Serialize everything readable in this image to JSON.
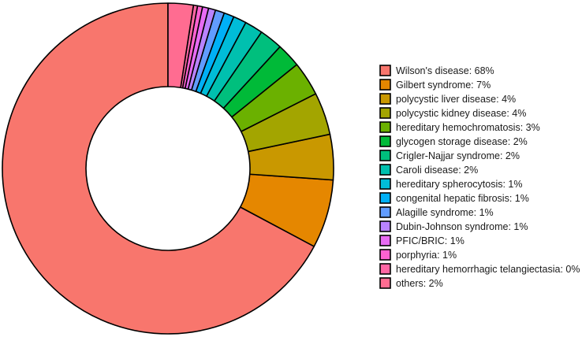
{
  "chart_data": {
    "type": "pie",
    "style": "donut",
    "legend_placement": "right",
    "title": "",
    "slices": [
      {
        "label": "Wilson's disease: 68%",
        "value": 68.2,
        "color": "#F8766D"
      },
      {
        "label": "Gilbert syndrome: 7%",
        "value": 6.8,
        "color": "#E58700"
      },
      {
        "label": "polycystic liver disease: 4%",
        "value": 4.5,
        "color": "#C99800"
      },
      {
        "label": "polycystic kidney disease: 4%",
        "value": 4.2,
        "color": "#A3A500"
      },
      {
        "label": "hereditary hemochromatosis: 3%",
        "value": 3.4,
        "color": "#6BB100"
      },
      {
        "label": "glycogen storage disease: 2%",
        "value": 2.4,
        "color": "#00BA38"
      },
      {
        "label": "Crigler-Najjar syndrome: 2%",
        "value": 2.3,
        "color": "#00BF7D"
      },
      {
        "label": "Caroli disease: 2%",
        "value": 1.8,
        "color": "#00C0AF"
      },
      {
        "label": "hereditary spherocytosis: 1%",
        "value": 1.3,
        "color": "#00BCD8"
      },
      {
        "label": "congenital hepatic fibrosis: 1%",
        "value": 1.0,
        "color": "#00B0F6"
      },
      {
        "label": "Alagille syndrome: 1%",
        "value": 0.9,
        "color": "#619CFF"
      },
      {
        "label": "Dubin-Johnson syndrome: 1%",
        "value": 0.7,
        "color": "#B983FF"
      },
      {
        "label": "PFIC/BRIC: 1%",
        "value": 0.6,
        "color": "#E76BF3"
      },
      {
        "label": "porphyria: 1%",
        "value": 0.5,
        "color": "#FD61D1"
      },
      {
        "label": "hereditary hemorrhagic telangiectasia: 0%",
        "value": 0.4,
        "color": "#FF67A4"
      },
      {
        "label": "others: 2%",
        "value": 2.5,
        "color": "#FF6C91"
      }
    ]
  }
}
